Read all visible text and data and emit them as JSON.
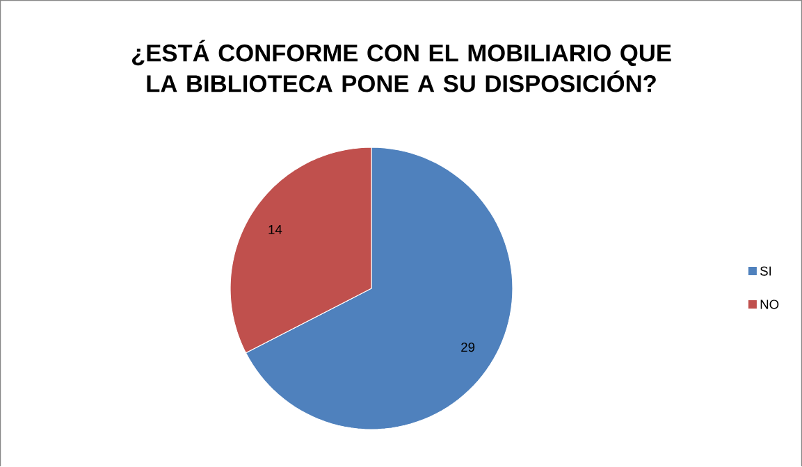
{
  "chart_data": {
    "type": "pie",
    "title": "¿ESTÁ CONFORME CON EL MOBILIARIO QUE LA BIBLIOTECA PONE A SU DISPOSICIÓN?",
    "categories": [
      "SI",
      "NO"
    ],
    "values": [
      29,
      14
    ],
    "colors": [
      "#4f81bd",
      "#c0504d"
    ],
    "data_labels": true,
    "legend": "right"
  }
}
